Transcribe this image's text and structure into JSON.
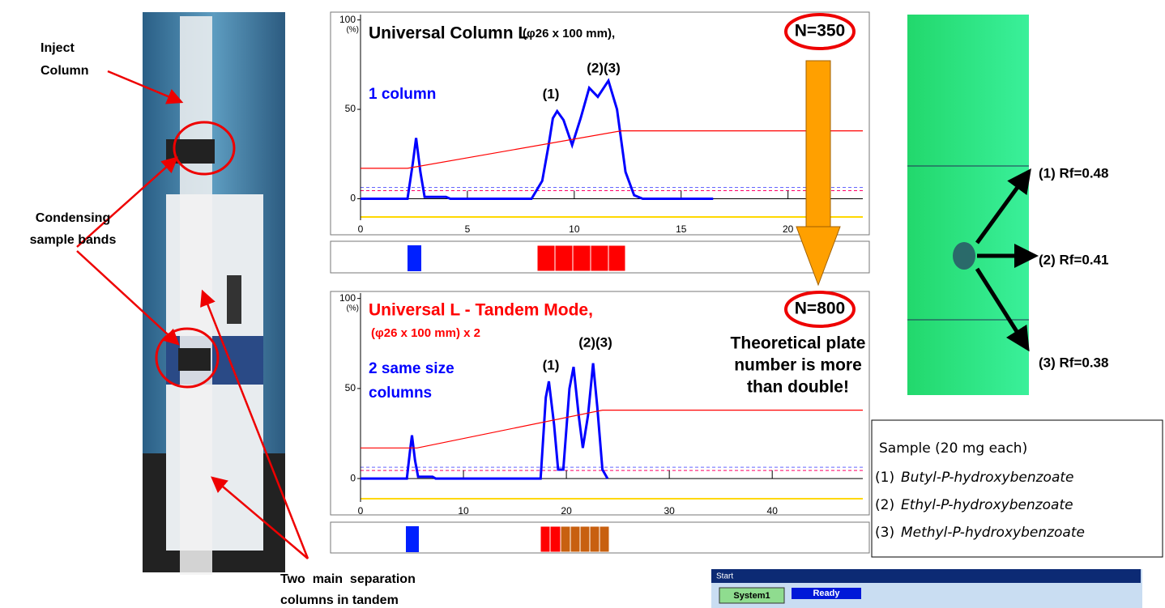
{
  "photo": {
    "inject_label": [
      "Inject",
      "Column"
    ],
    "condensing_label": [
      "Condensing",
      "sample bands"
    ],
    "tandem_label": [
      "Two  main  separation",
      "columns in tandem"
    ]
  },
  "chart_data": [
    {
      "type": "line",
      "title": "Universal Column L",
      "title_detail": "(φ26 x 100 mm),",
      "n_label": "N=350",
      "column_label": [
        "1 column"
      ],
      "peak_labels": [
        "(1)",
        "(2)(3)"
      ],
      "ylabel": "(%)",
      "xlim": [
        0,
        23.5
      ],
      "ylim": [
        -12,
        103
      ],
      "xticks": [
        0,
        5,
        10,
        15,
        20
      ],
      "yticks": [
        0,
        50,
        100
      ],
      "series": [
        {
          "name": "signal",
          "color": "#0000ff",
          "x": [
            0,
            2.2,
            2.45,
            2.6,
            2.8,
            3.0,
            3.3,
            4.0,
            4.2,
            8.0,
            8.5,
            8.8,
            9.0,
            9.2,
            9.5,
            9.9,
            10.3,
            10.7,
            11.1,
            11.6,
            12.0,
            12.4,
            12.8,
            13.2,
            16.5
          ],
          "values": [
            0,
            0,
            20,
            34,
            15,
            1,
            1,
            1,
            0,
            0,
            10,
            30,
            45,
            49,
            44,
            30,
            45,
            62,
            57,
            66,
            50,
            15,
            2,
            0,
            0
          ]
        },
        {
          "name": "gradient",
          "color": "#ff0000",
          "x": [
            0,
            2.2,
            12.2,
            23.5
          ],
          "values": [
            17,
            17,
            38,
            38
          ]
        }
      ]
    },
    {
      "type": "line",
      "title": "Universal L - Tandem Mode,",
      "title_detail": "(φ26 x 100 mm) x 2",
      "n_label": "N=800",
      "column_label": [
        "2 same size",
        "columns"
      ],
      "peak_labels": [
        "(1)",
        "(2)(3)"
      ],
      "ylabel": "(%)",
      "xlim": [
        0,
        48.8
      ],
      "ylim": [
        -13,
        103
      ],
      "xticks": [
        0,
        10,
        20,
        30,
        40
      ],
      "yticks": [
        0,
        50,
        100
      ],
      "series": [
        {
          "name": "signal",
          "color": "#0000ff",
          "x": [
            0,
            4.5,
            4.8,
            5.0,
            5.3,
            5.6,
            7.0,
            7.3,
            17.5,
            18.0,
            18.3,
            18.8,
            19.2,
            19.7,
            20.3,
            20.7,
            21.2,
            21.6,
            22.1,
            22.6,
            23.0,
            23.5,
            24.0
          ],
          "values": [
            0,
            0,
            15,
            24,
            10,
            1,
            1,
            0,
            0,
            45,
            54,
            30,
            5,
            5,
            50,
            62,
            35,
            17,
            35,
            64,
            40,
            5,
            0
          ]
        },
        {
          "name": "gradient",
          "color": "#ff0000",
          "x": [
            0,
            5.5,
            23.5,
            48.8
          ],
          "values": [
            17,
            17,
            38,
            38
          ]
        }
      ]
    }
  ],
  "note": [
    "Theoretical plate",
    "number is more",
    "than double!"
  ],
  "tlc": {
    "labels": [
      "(1) Rf=0.48",
      "(2) Rf=0.41",
      "(3) Rf=0.38"
    ]
  },
  "sample_box": {
    "title": "Sample (20 mg each)",
    "items": [
      {
        "num": "(1)",
        "name": "Butyl-P-hydroxybenzoate"
      },
      {
        "num": "(2)",
        "name": "Ethyl-P-hydroxybenzoate"
      },
      {
        "num": "(3)",
        "name": "Methyl-P-hydroxybenzoate"
      }
    ]
  },
  "status": {
    "title": "Start",
    "system": "System1",
    "state": "Ready"
  }
}
